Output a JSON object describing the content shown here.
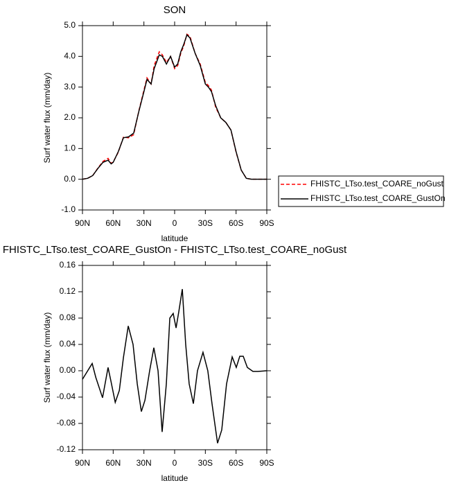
{
  "chart_data": [
    {
      "type": "line",
      "title": "SON",
      "xlabel": "latitude",
      "ylabel": "Surf water flux (mm/day)",
      "x": [
        90,
        85,
        80,
        75,
        70,
        65,
        62,
        60,
        55,
        50,
        45,
        40,
        35,
        30,
        27,
        23,
        20,
        15,
        12,
        8,
        4,
        0,
        -3,
        -6,
        -9,
        -12,
        -15,
        -20,
        -25,
        -30,
        -33,
        -36,
        -40,
        -45,
        -50,
        -55,
        -60,
        -65,
        -70,
        -75,
        -80,
        -85,
        -90
      ],
      "xlim": [
        90,
        -90
      ],
      "xticks": [
        {
          "value": 90,
          "label": "90N"
        },
        {
          "value": 60,
          "label": "60N"
        },
        {
          "value": 30,
          "label": "30N"
        },
        0,
        {
          "value": -30,
          "label": "30S"
        },
        {
          "value": -60,
          "label": "60S"
        },
        {
          "value": -90,
          "label": "90S"
        }
      ],
      "ylim": [
        -1,
        5
      ],
      "yticks": [
        {
          "value": -1,
          "label": "-1.0"
        },
        {
          "value": 0,
          "label": "0.0"
        },
        {
          "value": 1,
          "label": "1.0"
        },
        {
          "value": 2,
          "label": "2.0"
        },
        {
          "value": 3,
          "label": "3.0"
        },
        {
          "value": 4,
          "label": "4.0"
        },
        {
          "value": 5,
          "label": "5.0"
        }
      ],
      "legend": "right",
      "series": [
        {
          "name": "FHISTC_LTso.test_COARE_noGust",
          "color": "#ff0000",
          "linestyle": "dashed",
          "values": [
            0,
            0.03,
            0.12,
            0.36,
            0.58,
            0.68,
            0.52,
            0.56,
            0.88,
            1.37,
            1.35,
            1.45,
            2.22,
            2.9,
            3.3,
            3.1,
            3.7,
            4.15,
            4.05,
            3.8,
            4.0,
            3.6,
            3.7,
            4.1,
            4.35,
            4.72,
            4.65,
            4.1,
            3.75,
            3.15,
            3.05,
            2.9,
            2.35,
            2.0,
            1.85,
            1.6,
            0.88,
            0.3,
            0.03,
            0,
            0,
            0,
            0
          ]
        },
        {
          "name": "FHISTC_LTso.test_COARE_GustOn",
          "color": "#000000",
          "linestyle": "solid",
          "values": [
            0,
            0.03,
            0.12,
            0.35,
            0.55,
            0.62,
            0.5,
            0.55,
            0.9,
            1.35,
            1.38,
            1.5,
            2.2,
            2.85,
            3.25,
            3.1,
            3.6,
            4.05,
            4.0,
            3.75,
            4.0,
            3.65,
            3.75,
            4.15,
            4.4,
            4.7,
            4.6,
            4.1,
            3.7,
            3.1,
            3.0,
            2.85,
            2.4,
            2.0,
            1.85,
            1.6,
            0.9,
            0.3,
            0.03,
            0,
            0,
            0,
            0
          ]
        }
      ]
    },
    {
      "type": "line",
      "title": "FHISTC_LTso.test_COARE_GustOn - FHISTC_LTso.test_COARE_noGust",
      "xlabel": "latitude",
      "ylabel": "Surf water flux (mm/day)",
      "x": [
        90,
        80.5,
        77,
        70.4,
        65,
        62.3,
        58,
        54,
        50,
        45.3,
        40.6,
        36.5,
        32.5,
        29,
        24.4,
        20.3,
        16.2,
        12.2,
        8.1,
        4.7,
        1.4,
        -1.4,
        -4.1,
        -7.5,
        -10.8,
        -14.2,
        -18.3,
        -22.3,
        -27.7,
        -32.4,
        -36.5,
        -41.9,
        -46,
        -50.7,
        -56.2,
        -60.2,
        -63.6,
        -67,
        -71,
        -76.5,
        -81.2,
        -90
      ],
      "xlim": [
        90,
        -90
      ],
      "xticks": [
        {
          "value": 90,
          "label": "90N"
        },
        {
          "value": 60,
          "label": "60N"
        },
        {
          "value": 30,
          "label": "30N"
        },
        0,
        {
          "value": -30,
          "label": "30S"
        },
        {
          "value": -60,
          "label": "60S"
        },
        {
          "value": -90,
          "label": "90S"
        }
      ],
      "ylim": [
        -0.12,
        0.16
      ],
      "yticks": [
        -0.12,
        -0.08,
        -0.04,
        {
          "value": 0,
          "label": "0.00"
        },
        0.04,
        0.08,
        0.12,
        0.16
      ],
      "series": [
        {
          "color": "#000000",
          "linestyle": "solid",
          "values": [
            -0.013,
            0.011,
            -0.01,
            -0.041,
            0.005,
            -0.015,
            -0.048,
            -0.03,
            0.02,
            0.068,
            0.04,
            -0.02,
            -0.062,
            -0.045,
            0.0,
            0.035,
            0.0,
            -0.093,
            -0.02,
            0.08,
            0.087,
            0.065,
            0.09,
            0.124,
            0.04,
            -0.02,
            -0.05,
            0.0,
            0.028,
            0.0,
            -0.05,
            -0.11,
            -0.09,
            -0.02,
            0.021,
            0.005,
            0.022,
            0.022,
            0.005,
            -0.001,
            -0.001,
            0.0
          ]
        }
      ]
    }
  ]
}
